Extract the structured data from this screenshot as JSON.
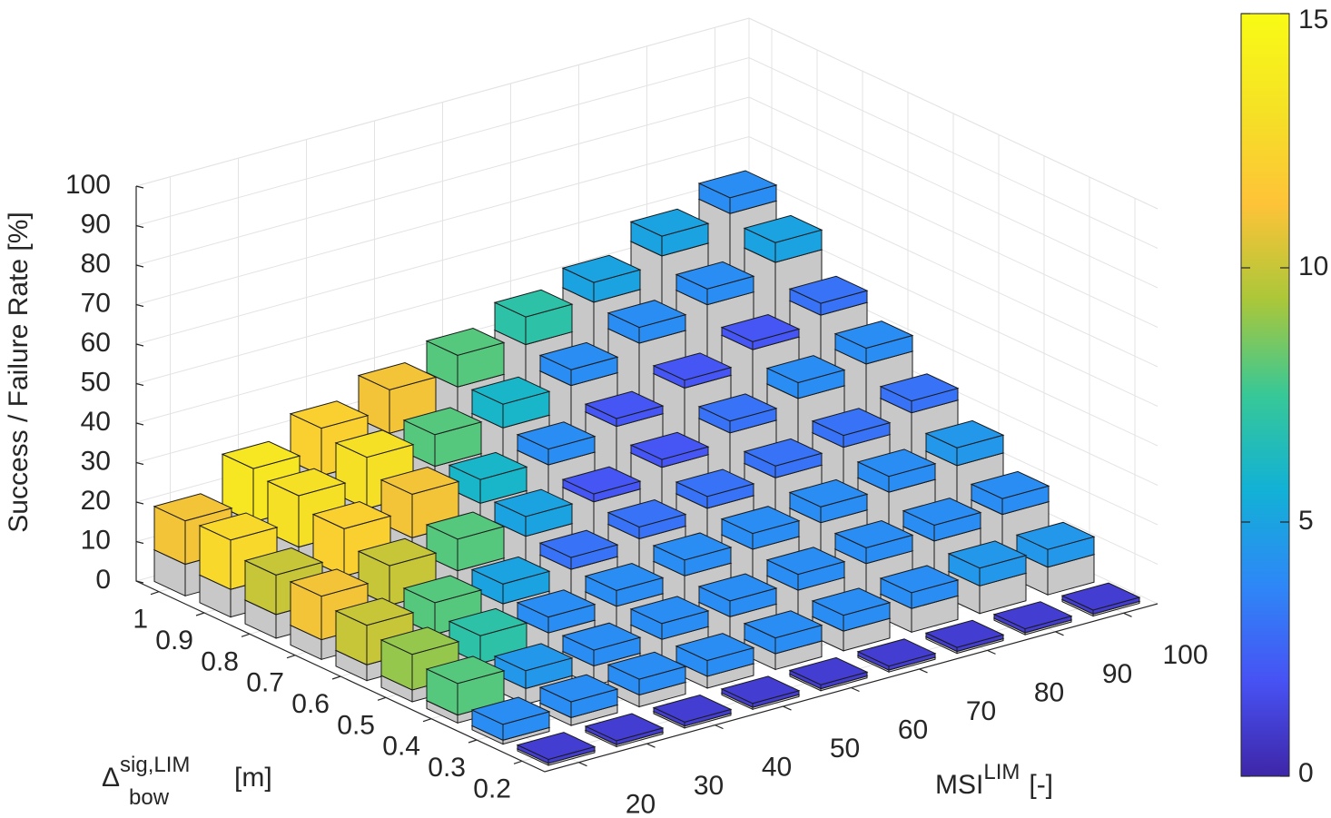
{
  "chart_data": {
    "type": "bar3",
    "shading": "flat",
    "xlabel": {
      "base": "MSI",
      "sup": "LIM",
      "unit": "[-]"
    },
    "ylabel": {
      "base": "Δ",
      "sub": "bow",
      "sup": "sig,LIM",
      "unit": "[m]"
    },
    "zlabel": "Success / Failure Rate [%]",
    "x_categories": [
      "20",
      "30",
      "40",
      "50",
      "60",
      "70",
      "80",
      "90",
      "100"
    ],
    "y_categories": [
      "0.2",
      "0.3",
      "0.4",
      "0.5",
      "0.6",
      "0.7",
      "0.8",
      "0.9",
      "1"
    ],
    "zlim": [
      0,
      100
    ],
    "zticks": [
      0,
      10,
      20,
      30,
      40,
      50,
      60,
      70,
      80,
      90,
      100
    ],
    "grid": true,
    "series": [
      {
        "color": "#c8c8c8",
        "values": [
          [
            0.5,
            0.5,
            0.5,
            0.5,
            0.5,
            0.5,
            0.5,
            0.5,
            0.5
          ],
          [
            1,
            2,
            3,
            3,
            4,
            5,
            6,
            7,
            7
          ],
          [
            2,
            4,
            5,
            7,
            8,
            10,
            12,
            13,
            15
          ],
          [
            3,
            5,
            8,
            10,
            13,
            15,
            17,
            20,
            22
          ],
          [
            4,
            7,
            10,
            14,
            17,
            20,
            23,
            26,
            30
          ],
          [
            5,
            9,
            13,
            17,
            21,
            25,
            29,
            33,
            37
          ],
          [
            6,
            11,
            16,
            20,
            25,
            30,
            35,
            40,
            44
          ],
          [
            7,
            13,
            18,
            24,
            29,
            35,
            41,
            46,
            52
          ],
          [
            8,
            14,
            21,
            27,
            34,
            40,
            46,
            53,
            59
          ]
        ]
      },
      {
        "color_by_value": true,
        "values": [
          [
            1,
            1,
            1,
            1,
            1,
            1,
            1,
            1,
            1
          ],
          [
            4,
            4,
            4,
            4,
            4,
            4,
            4,
            4.5,
            4.5
          ],
          [
            8,
            4.5,
            4,
            4,
            4,
            4,
            4,
            4,
            4
          ],
          [
            9,
            7,
            4,
            4,
            4,
            4,
            4,
            4,
            4.5
          ],
          [
            10,
            8,
            5,
            3,
            3,
            3,
            3,
            3,
            3
          ],
          [
            11,
            10,
            8,
            5,
            2,
            2,
            3,
            4,
            4
          ],
          [
            10,
            12,
            11,
            6,
            4,
            2,
            2,
            2,
            3
          ],
          [
            12.5,
            13,
            13,
            8,
            6,
            4,
            4,
            4,
            5
          ],
          [
            11,
            13.5,
            12,
            11,
            8,
            7,
            5,
            5,
            4
          ]
        ]
      }
    ],
    "colormap": [
      "#3e26a8",
      "#4752f4",
      "#2e87f7",
      "#12b1d6",
      "#37c897",
      "#abc739",
      "#fec338",
      "#f5e225",
      "#f9fb15"
    ],
    "clim": [
      0,
      15
    ],
    "cticks": [
      0,
      5,
      10,
      15
    ]
  }
}
